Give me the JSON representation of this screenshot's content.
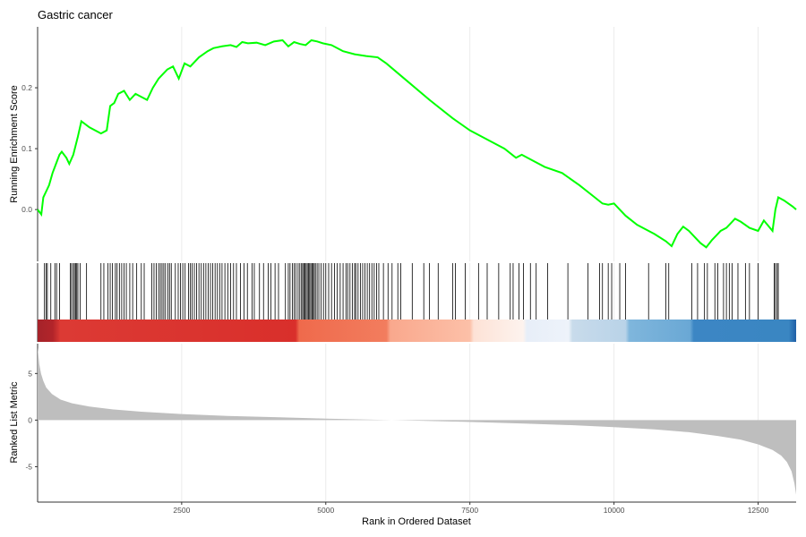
{
  "chart_data": {
    "type": "line",
    "title": "Gastric cancer",
    "xlabel": "Rank in Ordered Dataset",
    "xlim": [
      1,
      13160
    ],
    "x_ticks": [
      "2500",
      "5000",
      "7500",
      "10000",
      "12500"
    ],
    "grid": "vertical",
    "colors": {
      "curve": "#00ff00",
      "metric_fill": "#bebebe",
      "hit_line": "#000000",
      "grid": "#ebebeb",
      "axis": "#333333"
    },
    "panels": [
      {
        "name": "running-enrichment",
        "ylabel": "Running Enrichment Score",
        "ylim": [
          -0.085,
          0.3
        ],
        "y_ticks": [
          "0.0",
          "0.1",
          "0.2"
        ],
        "series": [
          {
            "x": [
              1,
              65,
              100,
              150,
              200,
              260,
              300,
              380,
              420,
              500,
              550,
              620,
              700,
              760,
              900,
              1100,
              1200,
              1260,
              1330,
              1400,
              1500,
              1600,
              1700,
              1800,
              1900,
              2000,
              2100,
              2150,
              2250,
              2350,
              2450,
              2550,
              2650,
              2800,
              2950,
              3050,
              3200,
              3350,
              3450,
              3550,
              3650,
              3800,
              3950,
              4100,
              4250,
              4350,
              4450,
              4550,
              4650,
              4750,
              4850,
              4950,
              5100,
              5300,
              5500,
              5700,
              5900,
              6050,
              6300,
              6800,
              7200,
              7500,
              7800,
              8100,
              8300,
              8400,
              8600,
              8800,
              9100,
              9400,
              9600,
              9800,
              9900,
              10000,
              10100,
              10200,
              10400,
              10700,
              10900,
              11000,
              11050,
              11100,
              11200,
              11300,
              11400,
              11500,
              11600,
              11700,
              11800,
              11850,
              11950,
              12050,
              12100,
              12200,
              12350,
              12500,
              12600,
              12750,
              12800,
              12850,
              12950,
              13100,
              13160
            ],
            "values": [
              0.0,
              -0.008,
              0.02,
              0.03,
              0.04,
              0.06,
              0.07,
              0.09,
              0.095,
              0.085,
              0.075,
              0.09,
              0.12,
              0.145,
              0.135,
              0.125,
              0.13,
              0.17,
              0.175,
              0.19,
              0.195,
              0.18,
              0.19,
              0.185,
              0.18,
              0.2,
              0.215,
              0.22,
              0.23,
              0.235,
              0.215,
              0.24,
              0.235,
              0.25,
              0.26,
              0.265,
              0.268,
              0.27,
              0.267,
              0.275,
              0.273,
              0.274,
              0.27,
              0.276,
              0.278,
              0.268,
              0.275,
              0.272,
              0.27,
              0.278,
              0.276,
              0.273,
              0.27,
              0.26,
              0.255,
              0.252,
              0.25,
              0.24,
              0.22,
              0.18,
              0.15,
              0.13,
              0.115,
              0.1,
              0.085,
              0.09,
              0.08,
              0.07,
              0.06,
              0.04,
              0.025,
              0.01,
              0.008,
              0.01,
              0.0,
              -0.01,
              -0.025,
              -0.04,
              -0.052,
              -0.06,
              -0.05,
              -0.04,
              -0.028,
              -0.035,
              -0.045,
              -0.055,
              -0.062,
              -0.05,
              -0.04,
              -0.035,
              -0.03,
              -0.02,
              -0.015,
              -0.02,
              -0.03,
              -0.035,
              -0.018,
              -0.035,
              0.0,
              0.02,
              0.015,
              0.005,
              0.0
            ]
          }
        ]
      },
      {
        "name": "ranked-list-metric",
        "ylabel": "Ranked List Metric",
        "ylim": [
          -8.8,
          8.2
        ],
        "y_ticks": [
          "-5",
          "0",
          "5"
        ],
        "series": [
          {
            "x": [
              1,
              30,
              60,
              100,
              150,
              250,
              400,
              600,
              900,
              1300,
              1800,
              2500,
              3300,
              4200,
              5000,
              5800,
              6500,
              7200,
              7800,
              8500,
              9300,
              10000,
              10700,
              11300,
              11800,
              12200,
              12500,
              12750,
              12900,
              13000,
              13080,
              13130,
              13160
            ],
            "values": [
              7.8,
              6.0,
              5.0,
              4.2,
              3.5,
              2.8,
              2.2,
              1.8,
              1.45,
              1.15,
              0.9,
              0.65,
              0.45,
              0.3,
              0.15,
              0.05,
              -0.05,
              -0.15,
              -0.25,
              -0.38,
              -0.55,
              -0.75,
              -1.0,
              -1.3,
              -1.7,
              -2.1,
              -2.6,
              -3.2,
              -3.8,
              -4.5,
              -5.5,
              -6.8,
              -8.0
            ]
          }
        ]
      }
    ],
    "gene_hits": [
      120,
      150,
      170,
      230,
      300,
      330,
      380,
      570,
      590,
      620,
      640,
      660,
      680,
      700,
      740,
      850,
      1100,
      1150,
      1220,
      1260,
      1300,
      1350,
      1380,
      1420,
      1460,
      1500,
      1540,
      1600,
      1650,
      1720,
      1800,
      1850,
      1980,
      2020,
      2060,
      2100,
      2130,
      2160,
      2190,
      2220,
      2260,
      2290,
      2320,
      2390,
      2440,
      2480,
      2520,
      2560,
      2620,
      2650,
      2680,
      2720,
      2760,
      2800,
      2840,
      2880,
      2920,
      2960,
      3000,
      3040,
      3080,
      3120,
      3160,
      3200,
      3250,
      3300,
      3350,
      3400,
      3450,
      3520,
      3580,
      3640,
      3720,
      3760,
      3850,
      3920,
      4000,
      4050,
      4120,
      4180,
      4300,
      4350,
      4380,
      4420,
      4450,
      4480,
      4520,
      4550,
      4580,
      4600,
      4620,
      4640,
      4660,
      4680,
      4700,
      4720,
      4740,
      4760,
      4780,
      4800,
      4820,
      4850,
      4880,
      4920,
      4960,
      5000,
      5050,
      5100,
      5150,
      5200,
      5250,
      5300,
      5350,
      5380,
      5420,
      5460,
      5500,
      5520,
      5560,
      5600,
      5640,
      5680,
      5720,
      5760,
      5800,
      5840,
      5880,
      5920,
      6000,
      6080,
      6150,
      6250,
      6300,
      6500,
      6700,
      6800,
      6950,
      7200,
      7250,
      7420,
      7650,
      7800,
      8000,
      8200,
      8250,
      8350,
      8430,
      8550,
      8650,
      8850,
      9200,
      9550,
      9750,
      9800,
      9900,
      9960,
      10100,
      10200,
      10600,
      10900,
      10950,
      11350,
      11450,
      11570,
      11620,
      11750,
      11800,
      11900,
      11950,
      12000,
      12050,
      12150,
      12280,
      12350,
      12500,
      12780,
      12800,
      12830,
      12850
    ]
  }
}
